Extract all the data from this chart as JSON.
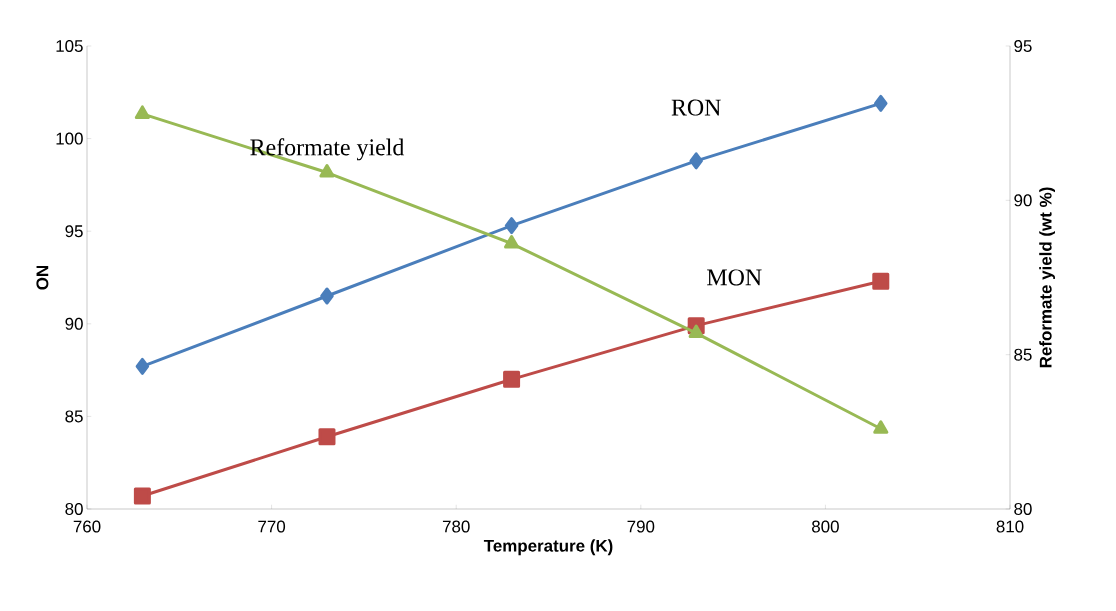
{
  "chart_data": {
    "type": "line",
    "xlabel": "Temperature (K)",
    "ylabel": "ON",
    "y2label": "Reformate yield (wt %)",
    "x": [
      763,
      773,
      783,
      793,
      803
    ],
    "series": [
      {
        "name": "RON",
        "color": "#4a7ebb",
        "marker": "diamond",
        "values": [
          87.7,
          91.5,
          95.3,
          98.8,
          101.9
        ]
      },
      {
        "name": "MON",
        "color": "#be4b48",
        "marker": "square",
        "values": [
          80.7,
          83.9,
          87.0,
          89.9,
          92.3
        ]
      },
      {
        "name": "Reformate yield",
        "color": "#98b954",
        "marker": "triangle",
        "axis": "y2",
        "values": [
          92.8,
          90.9,
          88.6,
          85.7,
          82.6
        ]
      }
    ],
    "xlim": [
      760,
      810
    ],
    "xticks": [
      760,
      770,
      780,
      790,
      800,
      810
    ],
    "ylim": [
      80,
      105
    ],
    "yticks": [
      80,
      85,
      90,
      95,
      100,
      105
    ],
    "y2lim": [
      80,
      95
    ],
    "y2ticks": [
      80,
      85,
      90,
      95
    ],
    "grid": false,
    "legend": false,
    "line_style": "solid"
  }
}
